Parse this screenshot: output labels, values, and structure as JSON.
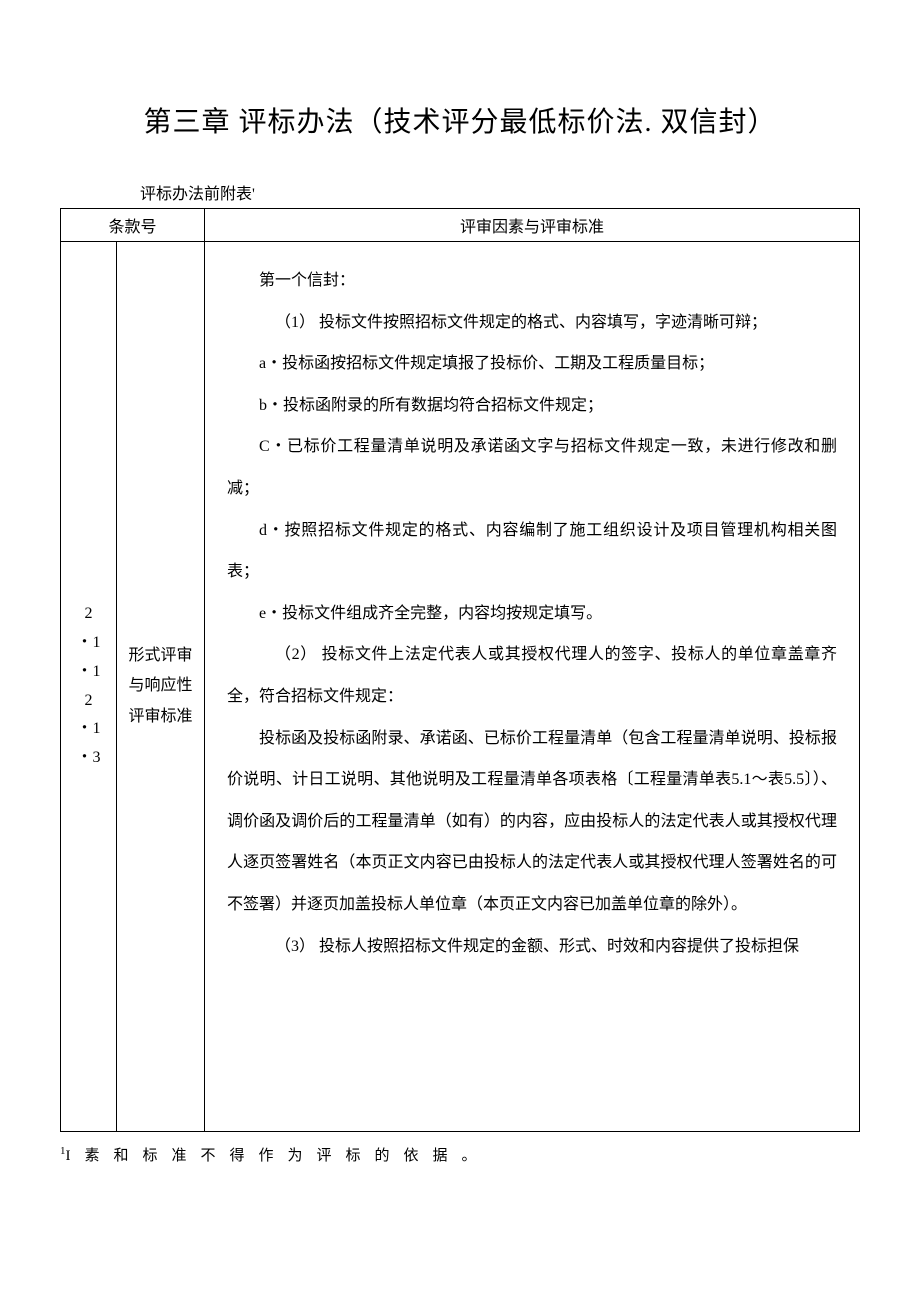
{
  "title": "第三章 评标办法（技术评分最低标价法. 双信封）",
  "subtitle": "评标办法前附表'",
  "header": {
    "clause_no": "条款号",
    "criteria": "评审因素与评审标准"
  },
  "row": {
    "clause_a_line1": "2",
    "clause_a_line2": "・1",
    "clause_a_line3": "・1",
    "clause_a_line4": "2",
    "clause_a_line5": "・1",
    "clause_a_line6": "・3",
    "clause_b": "形式评审与响应性评审标准",
    "p1": "第一个信封：",
    "p2": "（1） 投标文件按照招标文件规定的格式、内容填写，字迹清晰可辩；",
    "p3": "a・投标函按招标文件规定填报了投标价、工期及工程质量目标；",
    "p4": "b・投标函附录的所有数据均符合招标文件规定；",
    "p5": "C・已标价工程量清单说明及承诺函文字与招标文件规定一致，未进行修改和删减；",
    "p6": "d・按照招标文件规定的格式、内容编制了施工组织设计及项目管理机构相关图表；",
    "p7": "e・投标文件组成齐全完整，内容均按规定填写。",
    "p8": "（2） 投标文件上法定代表人或其授权代理人的签字、投标人的单位章盖章齐全，符合招标文件规定：",
    "p9": "投标函及投标函附录、承诺函、已标价工程量清单（包含工程量清单说明、投标报价说明、计日工说明、其他说明及工程量清单各项表格〔工程量清单表5.1～表5.5〕）、调价函及调价后的工程量清单（如有）的内容，应由投标人的法定代表人或其授权代理人逐页签署姓名（本页正文内容已由投标人的法定代表人或其授权代理人签署姓名的可不签署）并逐页加盖投标人单位章（本页正文内容已加盖单位章的除外）。",
    "p10": "（3） 投标人按照招标文件规定的金额、形式、时效和内容提供了投标担保",
    "cutoff_height": 890
  },
  "footnote": {
    "sup": "1",
    "text": "I素和标准不得作为评标的依据。"
  },
  "colors": {
    "text": "#000000",
    "background": "#ffffff",
    "border": "#000000"
  },
  "typography": {
    "title_fontsize": 28,
    "body_fontsize": 16,
    "line_height": 2.6,
    "font_family": "SimSun"
  }
}
